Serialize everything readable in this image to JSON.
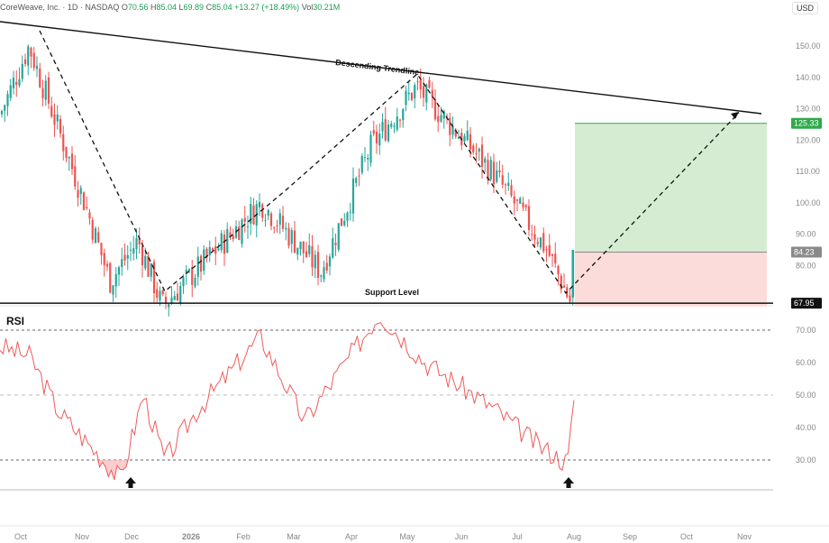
{
  "header": {
    "symbol": "CoreWeave, Inc. · 1D · NASDAQ",
    "o_label": "O",
    "o_value": "70.56",
    "h_label": "H",
    "h_value": "85.04",
    "l_label": "L",
    "l_value": "69.89",
    "c_label": "C",
    "c_value": "85.04",
    "change": "+13.27 (+18.49%)",
    "vol_label": "Vol",
    "vol_value": "30.21M"
  },
  "currency": "USD",
  "colors": {
    "up": "#26a69a",
    "down": "#ef5350",
    "rsi": "#f05a5a",
    "target": "#2eaa4a",
    "entry": "#8a8a8a",
    "stop": "#111111"
  },
  "chart_data": [
    {
      "type": "candlestick",
      "title": "CoreWeave, Inc. · 1D · NASDAQ",
      "x_ticks": [
        "Oct",
        "Nov",
        "Dec",
        "2026",
        "Feb",
        "Mar",
        "Apr",
        "May",
        "Jun",
        "Jul",
        "Aug",
        "Sep",
        "Oct",
        "Nov"
      ],
      "y_ticks": [
        70,
        80,
        90,
        100,
        110,
        120,
        130,
        140,
        150
      ],
      "ylim": [
        62,
        155
      ],
      "log_scale": false,
      "grid": false,
      "price_path_anchors": [
        {
          "date": "Oct",
          "close": 128
        },
        {
          "date": "Oct",
          "close": 150
        },
        {
          "date": "Nov",
          "close": 99
        },
        {
          "date": "Nov",
          "close": 75
        },
        {
          "date": "Dec",
          "close": 88
        },
        {
          "date": "Dec",
          "close": 67
        },
        {
          "date": "2026",
          "close": 80
        },
        {
          "date": "Feb",
          "close": 100
        },
        {
          "date": "Mar",
          "close": 78
        },
        {
          "date": "Apr",
          "close": 118
        },
        {
          "date": "May",
          "close": 137
        },
        {
          "date": "Jun",
          "close": 110
        },
        {
          "date": "Jul",
          "close": 85
        },
        {
          "date": "Aug",
          "close": 67
        },
        {
          "date": "Aug",
          "close": 85
        }
      ],
      "annotations": [
        {
          "text": "Descending Trendline"
        },
        {
          "text": "Support Level"
        }
      ],
      "levels": {
        "target": "125.33",
        "entry": "84.23",
        "stop": "67.95"
      }
    },
    {
      "type": "line",
      "title": "RSI",
      "y_ticks": [
        30,
        40,
        50,
        60,
        70
      ],
      "ylim": [
        20,
        77
      ],
      "reference_lines": [
        70,
        50,
        30
      ],
      "rsi_anchors": [
        {
          "date": "Oct",
          "rsi": 65
        },
        {
          "date": "Oct",
          "rsi": 62
        },
        {
          "date": "Nov",
          "rsi": 45
        },
        {
          "date": "Nov",
          "rsi": 24
        },
        {
          "date": "Dec",
          "rsi": 50
        },
        {
          "date": "Dec",
          "rsi": 30
        },
        {
          "date": "2026",
          "rsi": 45
        },
        {
          "date": "Feb",
          "rsi": 68
        },
        {
          "date": "Mar",
          "rsi": 42
        },
        {
          "date": "Apr",
          "rsi": 75
        },
        {
          "date": "May",
          "rsi": 60
        },
        {
          "date": "Jun",
          "rsi": 46
        },
        {
          "date": "Jul",
          "rsi": 35
        },
        {
          "date": "Aug",
          "rsi": 29
        },
        {
          "date": "Aug",
          "rsi": 52
        }
      ]
    }
  ]
}
